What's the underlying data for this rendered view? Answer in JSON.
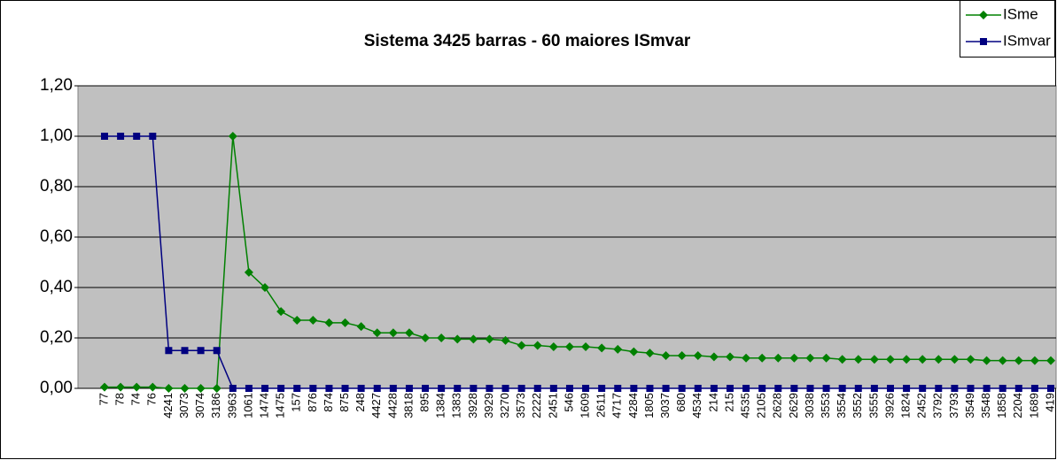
{
  "chart_data": {
    "type": "line",
    "title": "Sistema 3425 barras - 60 maiores ISmvar",
    "categories": [
      "77",
      "78",
      "74",
      "76",
      "4241",
      "3073",
      "3074",
      "3186",
      "3963",
      "1061",
      "1474",
      "1475",
      "157",
      "876",
      "874",
      "875",
      "248",
      "4427",
      "4428",
      "3818",
      "895",
      "1384",
      "1383",
      "3928",
      "3929",
      "3270",
      "3573",
      "2222",
      "2451",
      "546",
      "1609",
      "2611",
      "4717",
      "4284",
      "1805",
      "3037",
      "680",
      "4534",
      "214",
      "215",
      "4535",
      "2105",
      "2628",
      "2629",
      "3038",
      "3553",
      "3554",
      "3552",
      "3555",
      "3926",
      "1824",
      "2452",
      "3792",
      "3793",
      "3549",
      "3548",
      "1858",
      "2204",
      "1689",
      "419"
    ],
    "series": [
      {
        "name": "ISme",
        "color": "#008000",
        "marker": "diamond",
        "values": [
          0.005,
          0.005,
          0.005,
          0.005,
          0,
          0,
          0,
          0,
          1.0,
          0.46,
          0.4,
          0.305,
          0.27,
          0.27,
          0.26,
          0.26,
          0.245,
          0.22,
          0.22,
          0.22,
          0.2,
          0.2,
          0.195,
          0.195,
          0.195,
          0.19,
          0.17,
          0.17,
          0.165,
          0.165,
          0.165,
          0.16,
          0.155,
          0.145,
          0.14,
          0.13,
          0.13,
          0.13,
          0.125,
          0.125,
          0.12,
          0.12,
          0.12,
          0.12,
          0.12,
          0.12,
          0.115,
          0.115,
          0.115,
          0.115,
          0.115,
          0.115,
          0.115,
          0.115,
          0.115,
          0.11,
          0.11,
          0.11,
          0.11,
          0.11
        ]
      },
      {
        "name": "ISmvar",
        "color": "#000080",
        "marker": "square",
        "values": [
          1,
          1,
          1,
          1,
          0.15,
          0.15,
          0.15,
          0.15,
          0,
          0,
          0,
          0,
          0,
          0,
          0,
          0,
          0,
          0,
          0,
          0,
          0,
          0,
          0,
          0,
          0,
          0,
          0,
          0,
          0,
          0,
          0,
          0,
          0,
          0,
          0,
          0,
          0,
          0,
          0,
          0,
          0,
          0,
          0,
          0,
          0,
          0,
          0,
          0,
          0,
          0,
          0,
          0,
          0,
          0,
          0,
          0,
          0,
          0,
          0,
          0
        ]
      }
    ],
    "ylim": [
      0,
      1.2
    ],
    "yticks": [
      {
        "value": 0,
        "label": "0,00"
      },
      {
        "value": 0.2,
        "label": "0,20"
      },
      {
        "value": 0.4,
        "label": "0,40"
      },
      {
        "value": 0.6,
        "label": "0,60"
      },
      {
        "value": 0.8,
        "label": "0,80"
      },
      {
        "value": 1.0,
        "label": "1,00"
      },
      {
        "value": 1.2,
        "label": "1,20"
      }
    ],
    "grid": true,
    "legend": "top-right",
    "plot_background": "#c0c0c0"
  }
}
